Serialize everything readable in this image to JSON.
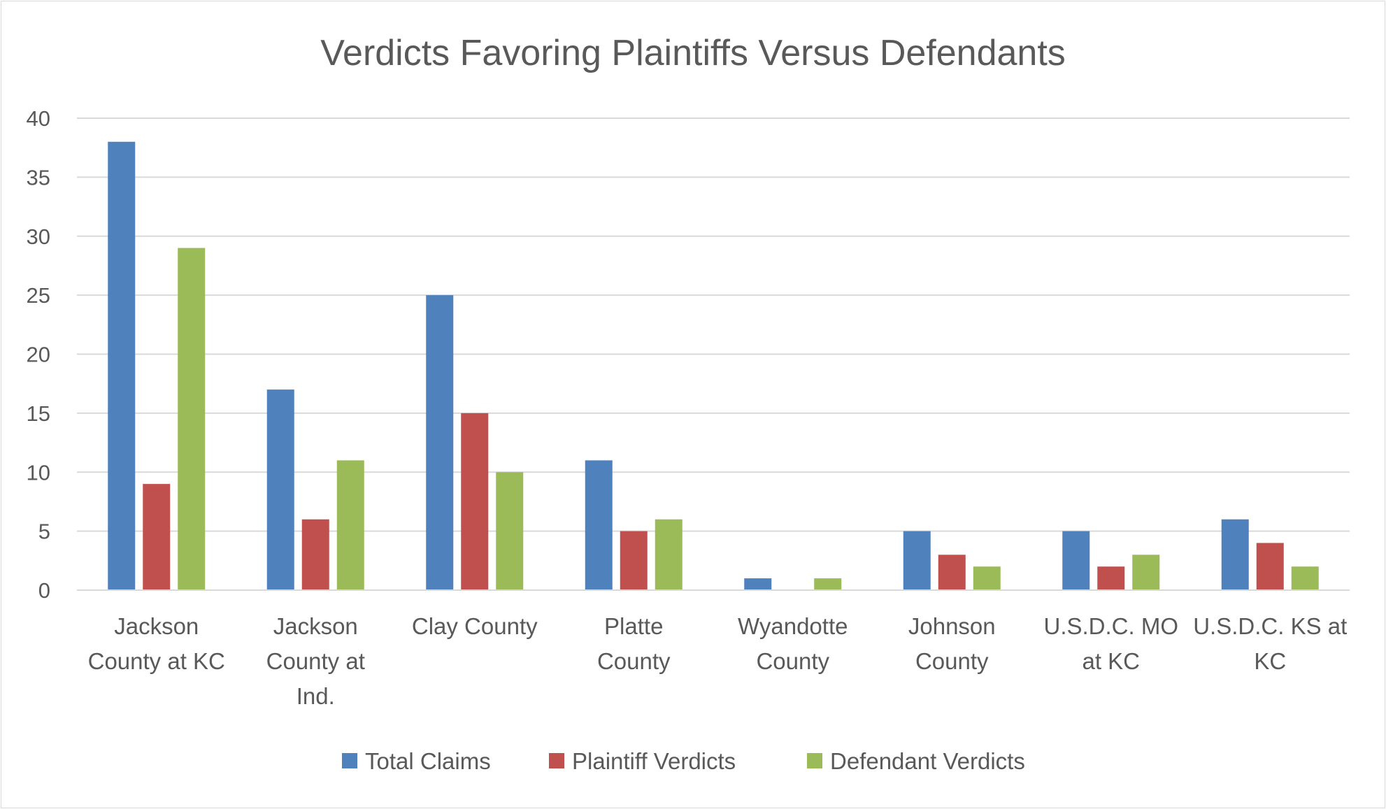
{
  "chart_data": {
    "type": "bar",
    "title": "Verdicts Favoring Plaintiffs Versus Defendants",
    "xlabel": "",
    "ylabel": "",
    "ylim": [
      0,
      40
    ],
    "yticks": [
      0,
      5,
      10,
      15,
      20,
      25,
      30,
      35,
      40
    ],
    "grid": true,
    "legend_position": "bottom",
    "categories": [
      [
        "Jackson",
        "County at KC"
      ],
      [
        "Jackson",
        "County at",
        "Ind."
      ],
      [
        "Clay County"
      ],
      [
        "Platte",
        "County"
      ],
      [
        "Wyandotte",
        "County"
      ],
      [
        "Johnson",
        "County"
      ],
      [
        "U.S.D.C. MO",
        "at KC"
      ],
      [
        "U.S.D.C. KS at",
        "KC"
      ]
    ],
    "series": [
      {
        "name": "Total Claims",
        "color": "#4f81bd",
        "values": [
          38,
          17,
          25,
          11,
          1,
          5,
          5,
          6
        ]
      },
      {
        "name": "Plaintiff Verdicts",
        "color": "#c0504d",
        "values": [
          9,
          6,
          15,
          5,
          0,
          3,
          2,
          4
        ]
      },
      {
        "name": "Defendant Verdicts",
        "color": "#9bbb59",
        "values": [
          29,
          11,
          10,
          6,
          1,
          2,
          3,
          2
        ]
      }
    ]
  }
}
